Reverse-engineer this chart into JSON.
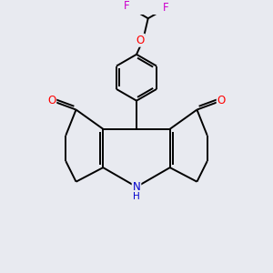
{
  "background_color": "#e8eaf0",
  "bond_color": "#000000",
  "bond_width": 1.4,
  "atom_colors": {
    "O": "#ff0000",
    "N": "#0000cd",
    "F": "#cc00cc",
    "C": "#000000"
  },
  "font_size_atom": 8.5
}
